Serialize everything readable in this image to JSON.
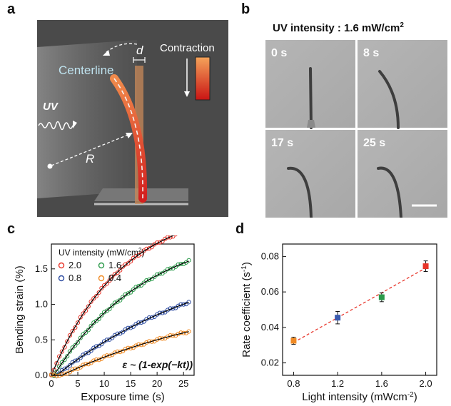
{
  "panels": {
    "a": {
      "letter": "a",
      "labels": {
        "centerline": "Centerline",
        "uv": "UV",
        "radius": "R",
        "diameter": "d",
        "contraction": "Contraction"
      },
      "colors": {
        "background": "#4a4a4a",
        "fiber_top": "#f08a4b",
        "fiber_bottom": "#d21f1f",
        "centerline": "#bfe3ef"
      }
    },
    "b": {
      "letter": "b",
      "title_prefix": "UV intensity : 1.6 mW/cm",
      "title_sup": "2",
      "frames": [
        "0 s",
        "8 s",
        "17 s",
        "25 s"
      ],
      "scale_bar": true
    },
    "c": {
      "letter": "c",
      "equation": "ε ~ (1-exp(−kt))"
    },
    "d": {
      "letter": "d"
    }
  },
  "chart_data": [
    {
      "type": "scatter",
      "panel": "c",
      "xlabel": "Exposure time (s)",
      "ylabel": "Bending strain (%)",
      "xlim": [
        0,
        27
      ],
      "ylim": [
        0,
        1.85
      ],
      "xticks": [
        "0",
        "5",
        "10",
        "15",
        "20",
        "25"
      ],
      "yticks": [
        "0.0",
        "0.5",
        "1.0",
        "1.5"
      ],
      "legend": {
        "title": "UV intensity (mW/cm",
        "title_sup": "2",
        "title_end": ")",
        "placement": "top-left"
      },
      "series": [
        {
          "name": "2.0",
          "color": "#e8352a",
          "k": 0.0745,
          "amp": 2.4,
          "t0": 0.0
        },
        {
          "name": "1.6",
          "color": "#2b9a4a",
          "k": 0.057,
          "amp": 2.1,
          "t0": 0.5
        },
        {
          "name": "0.8",
          "color": "#2b4aa0",
          "k": 0.0325,
          "amp": 1.85,
          "t0": 1.0
        },
        {
          "name": "0.4",
          "color": "#f08a24",
          "k": 0.03,
          "amp": 1.2,
          "t0": 2.0
        }
      ],
      "fit_color": "#000000"
    },
    {
      "type": "scatter",
      "panel": "d",
      "xlabel": "Light intensity (mWcm",
      "xlabel_sup": "-2",
      "xlabel_end": ")",
      "ylabel": "Rate coefficient (s",
      "ylabel_sup": "-1",
      "ylabel_end": ")",
      "xlim": [
        0.7,
        2.1
      ],
      "ylim": [
        0.013,
        0.087
      ],
      "xticks": [
        "0.8",
        "1.2",
        "1.6",
        "2.0"
      ],
      "yticks": [
        "0.02",
        "0.04",
        "0.06",
        "0.08"
      ],
      "points": [
        {
          "x": 0.8,
          "y": 0.0325,
          "err": 0.002,
          "color": "#f08a24"
        },
        {
          "x": 1.2,
          "y": 0.0455,
          "err": 0.0035,
          "color": "#3b5bb0"
        },
        {
          "x": 1.6,
          "y": 0.057,
          "err": 0.0025,
          "color": "#2b9a4a"
        },
        {
          "x": 2.0,
          "y": 0.0745,
          "err": 0.003,
          "color": "#e8352a"
        }
      ],
      "fit": {
        "x": [
          0.8,
          2.0
        ],
        "y": [
          0.0315,
          0.0735
        ],
        "color": "#e8352a",
        "style": "dashed"
      }
    }
  ]
}
